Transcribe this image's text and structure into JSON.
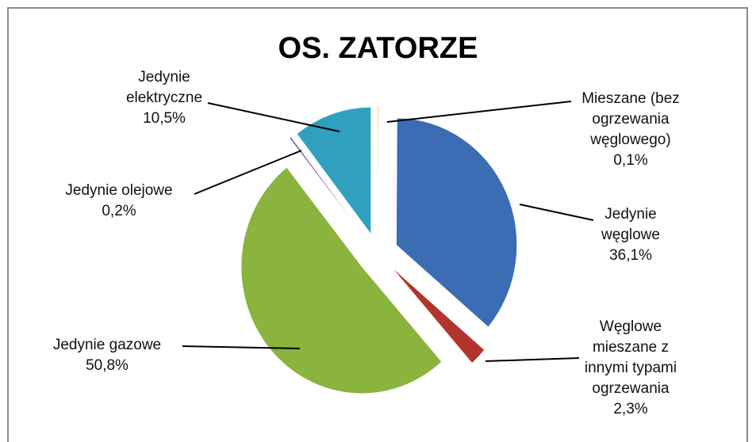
{
  "chart_data": {
    "type": "pie",
    "title": "OS. ZATORZE",
    "categories": [
      "Mieszane (bez ogrzewania węglowego)",
      "Jedynie węglowe",
      "Węglowe mieszane z innymi typami ogrzewania",
      "Jedynie gazowe",
      "Jedynie olejowe",
      "Jedynie elektryczne"
    ],
    "values": [
      0.1,
      36.1,
      2.3,
      50.8,
      0.2,
      10.5
    ],
    "value_labels": [
      "0,1%",
      "36,1%",
      "2,3%",
      "50,8%",
      "0,2%",
      "10,5%"
    ],
    "colors": [
      "#e46c0a",
      "#3a6db4",
      "#b3342c",
      "#8ab43e",
      "#6b4b9e",
      "#2fa1bf"
    ]
  }
}
